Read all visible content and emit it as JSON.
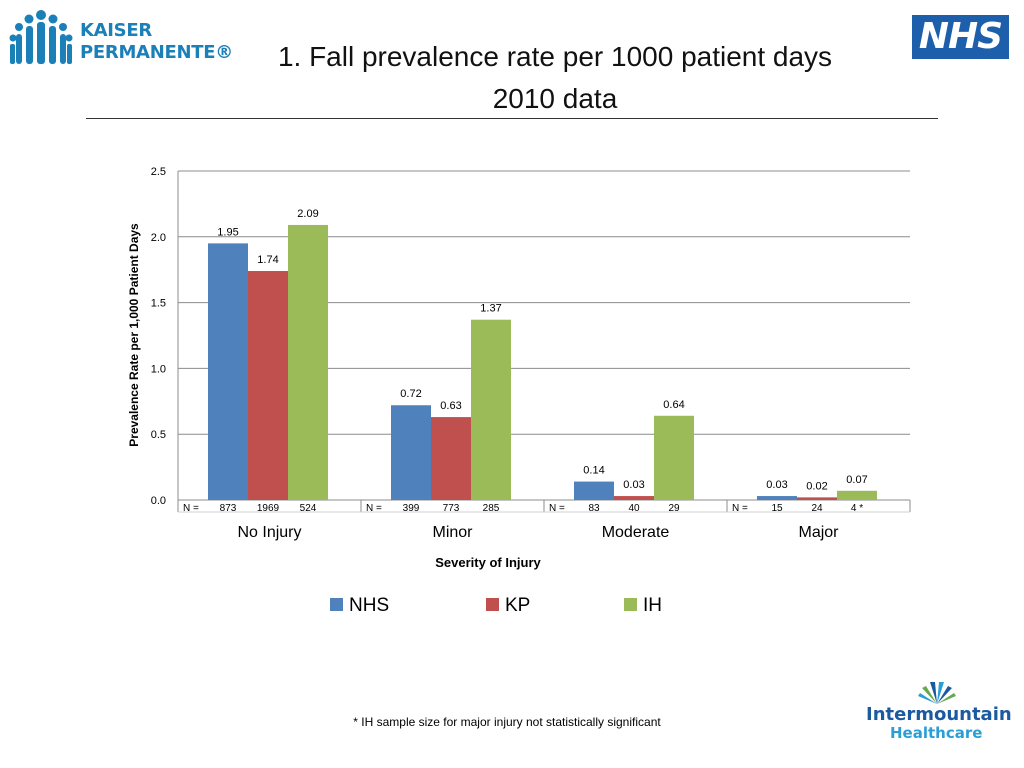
{
  "header": {
    "title_line1": "1. Fall prevalence rate per 1000 patient days",
    "title_line2": "2010 data"
  },
  "logos": {
    "kp_line1": "KAISER",
    "kp_line2": "PERMANENTE®",
    "nhs": "NHS",
    "ih_line1": "Intermountain",
    "ih_line2": "Healthcare"
  },
  "footnote": "* IH sample size for major injury not statistically significant",
  "colors": {
    "NHS": "#4f81bd",
    "KP": "#c0504d",
    "IH": "#9bbb59",
    "kp_brand": "#1b7fb8",
    "nhs_brand": "#1d5fab"
  },
  "chart_data": {
    "type": "bar",
    "categories": [
      "No Injury",
      "Minor",
      "Moderate",
      "Major"
    ],
    "series": [
      {
        "name": "NHS",
        "values": [
          1.95,
          0.72,
          0.14,
          0.03
        ],
        "labels": [
          "1.95",
          "0.72",
          "0.14",
          "0.03"
        ]
      },
      {
        "name": "KP",
        "values": [
          1.74,
          0.63,
          0.03,
          0.02
        ],
        "labels": [
          "1.74",
          "0.63",
          "0.03",
          "0.02"
        ]
      },
      {
        "name": "IH",
        "values": [
          2.09,
          1.37,
          0.64,
          0.07
        ],
        "labels": [
          "2.09",
          "1.37",
          "0.64",
          "0.07"
        ]
      }
    ],
    "n_label": "N =",
    "n_values": [
      [
        "873",
        "1969",
        "524"
      ],
      [
        "399",
        "773",
        "285"
      ],
      [
        "83",
        "40",
        "29"
      ],
      [
        "15",
        "24",
        "4 *"
      ]
    ],
    "xlabel": "Severity of Injury",
    "ylabel": "Prevalence Rate per 1,000 Patient Days",
    "ylim": [
      0,
      2.5
    ],
    "yticks": [
      "0.0",
      "0.5",
      "1.0",
      "1.5",
      "2.0",
      "2.5"
    ],
    "grid": true,
    "legend": "bottom"
  }
}
